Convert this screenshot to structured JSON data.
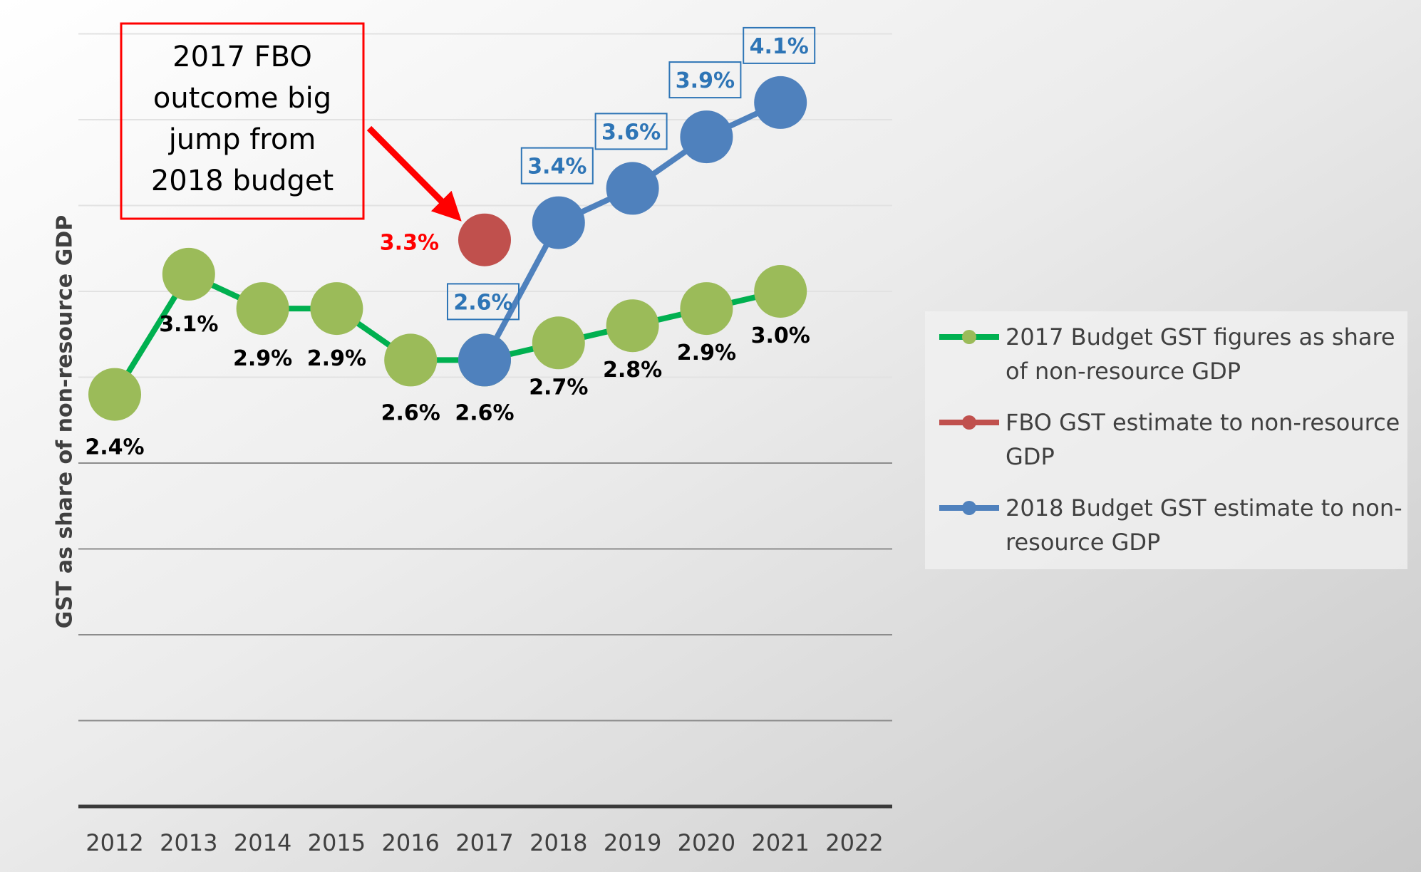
{
  "chart_data": {
    "type": "line",
    "title": "",
    "xlabel": "",
    "ylabel": "GST as share of non-resource GDP",
    "categories": [
      "2012",
      "2013",
      "2014",
      "2015",
      "2016",
      "2017",
      "2018",
      "2019",
      "2020",
      "2021",
      "2022"
    ],
    "ylim": [
      0,
      4.5
    ],
    "grid": true,
    "legend_position": "right",
    "series": [
      {
        "name": "2017 Budget GST figures as share of non-resource GDP",
        "color": "#00b050",
        "marker_color": "#9bbb59",
        "values": [
          2.4,
          3.1,
          2.9,
          2.9,
          2.6,
          2.6,
          2.7,
          2.8,
          2.9,
          3.0,
          null
        ],
        "labels": [
          "2.4%",
          "3.1%",
          "2.9%",
          "2.9%",
          "2.6%",
          "2.6%",
          "2.7%",
          "2.8%",
          "2.9%",
          "3.0%",
          ""
        ]
      },
      {
        "name": "FBO GST estimate to non-resource GDP",
        "color": "#c0504d",
        "marker_color": "#c0504d",
        "values": [
          null,
          null,
          null,
          null,
          null,
          3.3,
          null,
          null,
          null,
          null,
          null
        ],
        "labels": [
          "",
          "",
          "",
          "",
          "",
          "3.3%",
          "",
          "",
          "",
          "",
          ""
        ]
      },
      {
        "name": "2018 Budget GST estimate to non-resource GDP",
        "color": "#4f81bd",
        "marker_color": "#4f81bd",
        "values": [
          null,
          null,
          null,
          null,
          null,
          2.6,
          3.4,
          3.6,
          3.9,
          4.1,
          null
        ],
        "labels": [
          "",
          "",
          "",
          "",
          "",
          "2.6%",
          "3.4%",
          "3.6%",
          "3.9%",
          "4.1%",
          ""
        ]
      }
    ],
    "annotation": {
      "lines": [
        "2017 FBO",
        "outcome big",
        "jump from",
        "2018 budget"
      ],
      "box_color": "#ff0000",
      "arrow_color": "#ff0000"
    }
  }
}
